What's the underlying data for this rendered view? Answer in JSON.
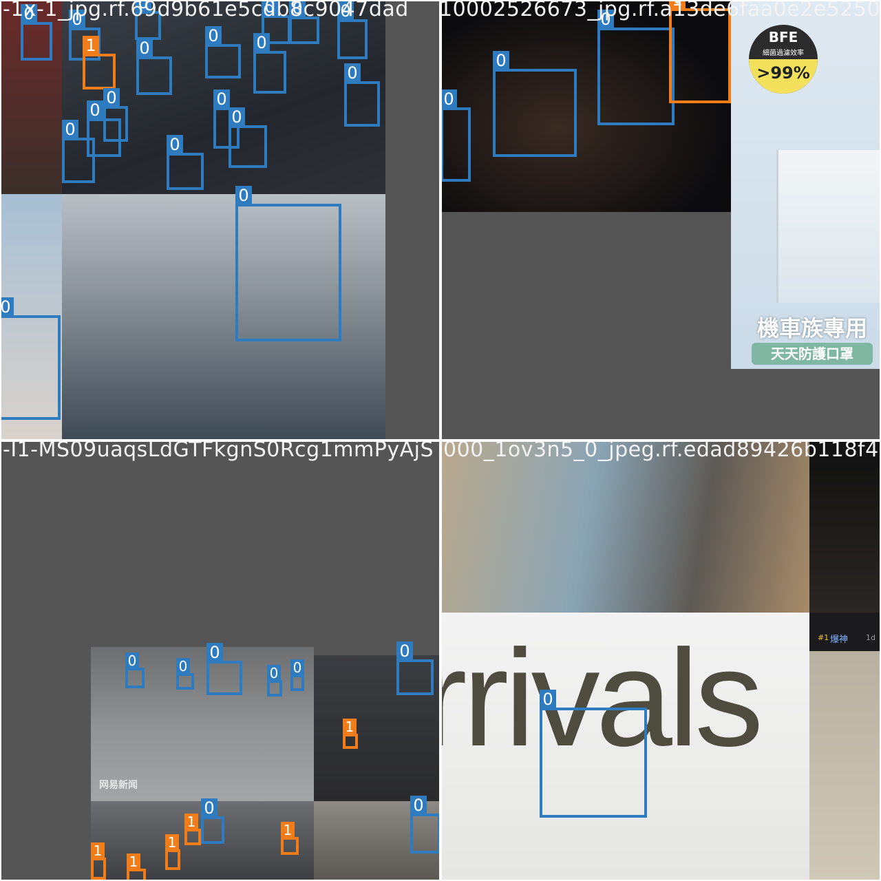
{
  "tiles": {
    "tl": {
      "title": "-1x-1_jpg.rf.69d9b61e5cdb8c9047dad"
    },
    "tr": {
      "title": "10002526673_jpg.rf.a13de6faa0e2e5250"
    },
    "bl": {
      "title": "-I1-MS09uaqsLdGTFkgnS0Rcg1mmPyAjS"
    },
    "br": {
      "title": "000_1ov3n5_0_jpeg.rf.edad89426b118f4"
    }
  },
  "classes": {
    "0": "0",
    "1": "1"
  },
  "colors": {
    "class_0": "#2e7cbf",
    "class_1": "#f07d1a",
    "background": "#555555"
  },
  "ad": {
    "bfe_title": "BFE",
    "bfe_sub": "細菌過濾效率",
    "bfe_value": ">99%",
    "headline": "機車族專用",
    "subline": "天天防護口罩"
  },
  "street_sign": {
    "text": "rrivals"
  },
  "watermark": {
    "text": "网易新闻"
  },
  "forum": {
    "rank": "#1",
    "user": "爆神",
    "age": "1d"
  }
}
